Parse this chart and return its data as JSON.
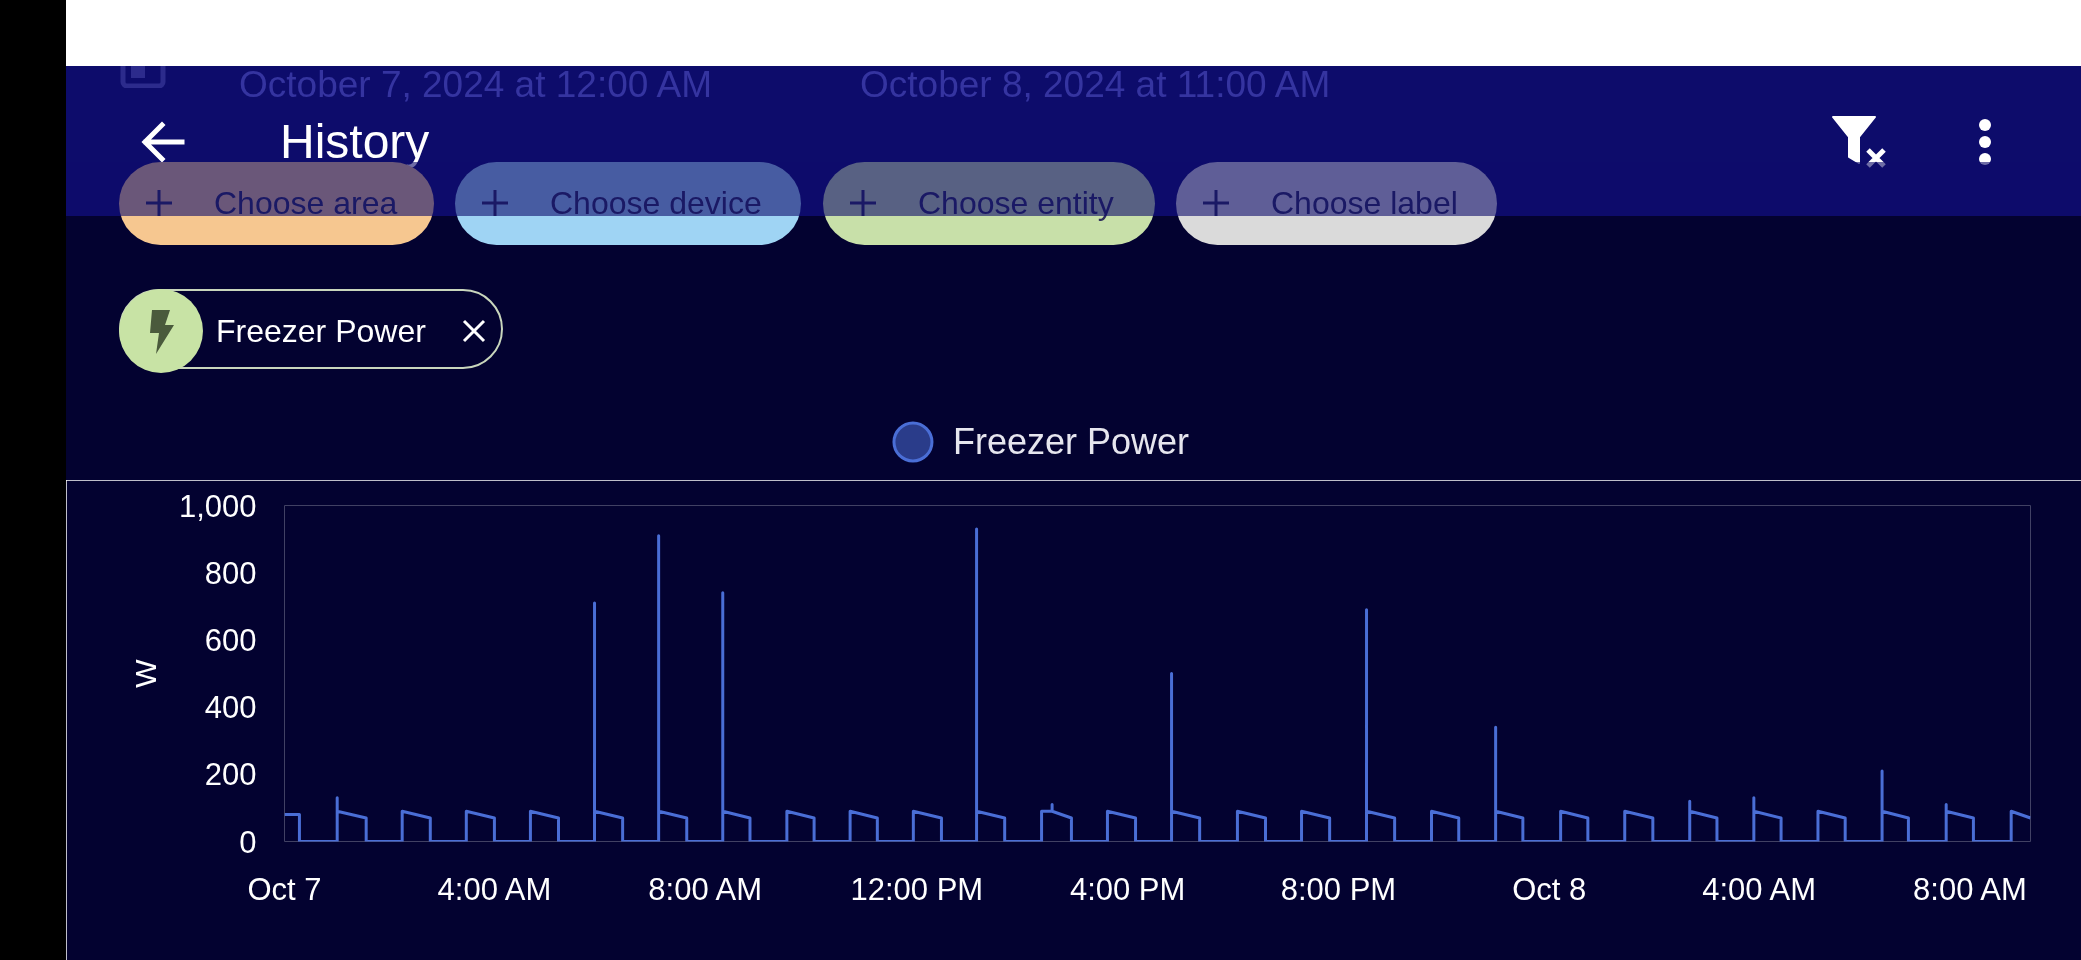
{
  "chart_data": {
    "type": "line",
    "title": "History",
    "annotations": [
      "October 7, 2024 at 12:00 AM",
      "October 8, 2024 at 11:00 AM",
      "Choose area",
      "Choose device",
      "Choose entity",
      "Choose label",
      "Freezer Power"
    ],
    "ylabel": "W",
    "legend": "top",
    "xlim": [
      "2024-10-07T00:00",
      "2024-10-08T09:08"
    ],
    "xticks": [
      {
        "value": "2024-10-07T00:00",
        "label": "Oct 7"
      },
      {
        "value": "2024-10-07T04:00",
        "label": "4:00 AM"
      },
      {
        "value": "2024-10-07T08:00",
        "label": "8:00 AM"
      },
      {
        "value": "2024-10-07T12:00",
        "label": "12:00 PM"
      },
      {
        "value": "2024-10-07T16:00",
        "label": "4:00 PM"
      },
      {
        "value": "2024-10-07T20:00",
        "label": "8:00 PM"
      },
      {
        "value": "2024-10-08T00:00",
        "label": "Oct 8"
      },
      {
        "value": "2024-10-08T04:00",
        "label": "4:00 AM"
      },
      {
        "value": "2024-10-08T08:00",
        "label": "8:00 AM"
      }
    ],
    "ylim": [
      0,
      1000
    ],
    "yticks": [
      0,
      200,
      400,
      600,
      800,
      {
        "value": 1000,
        "label": "1,000"
      }
    ],
    "x": [
      "2024-10-07T00:00",
      "2024-10-07T00:17",
      "2024-10-07T00:17",
      "2024-10-07T01:00",
      "2024-10-07T01:00",
      "2024-10-07T01:00",
      "2024-10-07T01:33",
      "2024-10-07T01:33",
      "2024-10-07T02:14",
      "2024-10-07T02:14",
      "2024-10-07T02:46",
      "2024-10-07T02:46",
      "2024-10-07T03:27",
      "2024-10-07T03:27",
      "2024-10-07T03:59",
      "2024-10-07T03:59",
      "2024-10-07T04:40",
      "2024-10-07T04:40",
      "2024-10-07T05:12",
      "2024-10-07T05:12",
      "2024-10-07T05:53",
      "2024-10-07T05:53",
      "2024-10-07T05:53",
      "2024-10-07T06:25",
      "2024-10-07T06:25",
      "2024-10-07T07:06",
      "2024-10-07T07:06",
      "2024-10-07T07:06",
      "2024-10-07T07:38",
      "2024-10-07T07:38",
      "2024-10-07T08:19",
      "2024-10-07T08:19",
      "2024-10-07T08:19",
      "2024-10-07T08:50",
      "2024-10-07T08:50",
      "2024-10-07T09:32",
      "2024-10-07T09:32",
      "2024-10-07T10:03",
      "2024-10-07T10:03",
      "2024-10-07T10:44",
      "2024-10-07T10:44",
      "2024-10-07T11:15",
      "2024-10-07T11:15",
      "2024-10-07T11:56",
      "2024-10-07T11:56",
      "2024-10-07T12:28",
      "2024-10-07T12:28",
      "2024-10-07T13:08",
      "2024-10-07T13:08",
      "2024-10-07T13:08",
      "2024-10-07T13:40",
      "2024-10-07T13:40",
      "2024-10-07T14:22",
      "2024-10-07T14:22",
      "2024-10-07T14:34",
      "2024-10-07T14:34",
      "2024-10-07T14:34",
      "2024-10-07T14:56",
      "2024-10-07T14:56",
      "2024-10-07T15:37",
      "2024-10-07T15:37",
      "2024-10-07T16:09",
      "2024-10-07T16:09",
      "2024-10-07T16:50",
      "2024-10-07T16:50",
      "2024-10-07T16:50",
      "2024-10-07T17:22",
      "2024-10-07T17:22",
      "2024-10-07T18:05",
      "2024-10-07T18:05",
      "2024-10-07T18:37",
      "2024-10-07T18:37",
      "2024-10-07T19:18",
      "2024-10-07T19:18",
      "2024-10-07T19:50",
      "2024-10-07T19:50",
      "2024-10-07T20:32",
      "2024-10-07T20:32",
      "2024-10-07T20:32",
      "2024-10-07T21:04",
      "2024-10-07T21:04",
      "2024-10-07T21:46",
      "2024-10-07T21:46",
      "2024-10-07T22:17",
      "2024-10-07T22:17",
      "2024-10-07T22:59",
      "2024-10-07T22:59",
      "2024-10-07T22:59",
      "2024-10-07T23:30",
      "2024-10-07T23:30",
      "2024-10-08T00:13",
      "2024-10-08T00:13",
      "2024-10-08T00:44",
      "2024-10-08T00:44",
      "2024-10-08T01:26",
      "2024-10-08T01:26",
      "2024-10-08T01:58",
      "2024-10-08T01:58",
      "2024-10-08T02:40",
      "2024-10-08T02:40",
      "2024-10-08T02:40",
      "2024-10-08T03:11",
      "2024-10-08T03:11",
      "2024-10-08T03:53",
      "2024-10-08T03:53",
      "2024-10-08T03:53",
      "2024-10-08T04:24",
      "2024-10-08T04:24",
      "2024-10-08T05:06",
      "2024-10-08T05:06",
      "2024-10-08T05:37",
      "2024-10-08T05:37",
      "2024-10-08T06:19",
      "2024-10-08T06:19",
      "2024-10-08T06:19",
      "2024-10-08T06:49",
      "2024-10-08T06:49",
      "2024-10-08T07:32",
      "2024-10-08T07:32",
      "2024-10-08T07:32",
      "2024-10-08T08:03",
      "2024-10-08T08:03",
      "2024-10-08T08:46",
      "2024-10-08T08:46",
      "2024-10-08T09:08"
    ],
    "series": [
      {
        "name": "Freezer Power",
        "color": "#4a6ed6",
        "values": [
          80,
          80,
          0,
          0,
          130,
          90,
          70,
          0,
          0,
          90,
          70,
          0,
          0,
          90,
          70,
          0,
          0,
          90,
          70,
          0,
          0,
          710,
          90,
          70,
          0,
          0,
          910,
          90,
          70,
          0,
          0,
          740,
          90,
          70,
          0,
          0,
          90,
          70,
          0,
          0,
          90,
          70,
          0,
          0,
          90,
          70,
          0,
          0,
          930,
          90,
          70,
          0,
          0,
          90,
          90,
          110,
          90,
          70,
          0,
          0,
          90,
          70,
          0,
          0,
          500,
          90,
          70,
          0,
          0,
          90,
          70,
          0,
          0,
          90,
          70,
          0,
          0,
          690,
          90,
          70,
          0,
          0,
          90,
          70,
          0,
          0,
          340,
          90,
          70,
          0,
          0,
          90,
          70,
          0,
          0,
          90,
          70,
          0,
          0,
          120,
          90,
          70,
          0,
          0,
          130,
          90,
          70,
          0,
          0,
          90,
          70,
          0,
          0,
          210,
          90,
          70,
          0,
          0,
          110,
          90,
          70,
          0,
          0,
          90,
          70
        ]
      }
    ]
  }
}
